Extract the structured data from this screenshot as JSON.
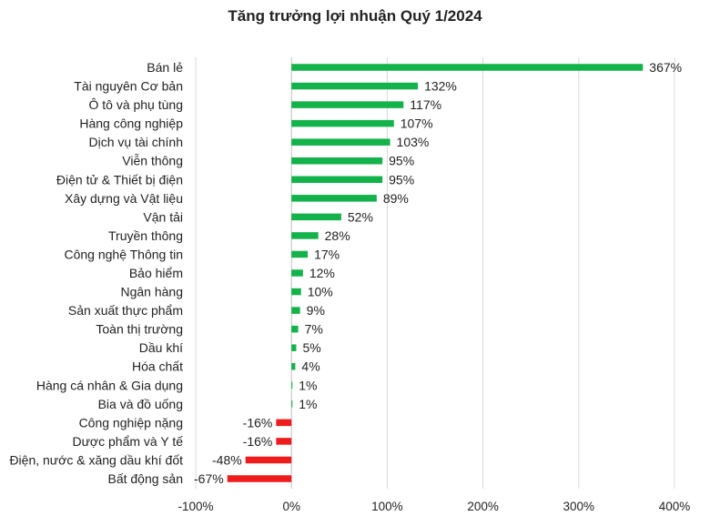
{
  "chart_data": {
    "type": "bar",
    "orientation": "horizontal",
    "title": "Tăng trưởng lợi nhuận Quý 1/2024",
    "xlabel": "",
    "ylabel": "",
    "xlim": [
      -100,
      400
    ],
    "x_ticks": [
      "-100%",
      "0%",
      "100%",
      "200%",
      "300%",
      "400%"
    ],
    "x_tick_values": [
      -100,
      0,
      100,
      200,
      300,
      400
    ],
    "grid": true,
    "legend": "none",
    "colors": {
      "positive": "#13b24b",
      "negative": "#ee1c1c",
      "grid": "#d9d9d9",
      "axis": "#bfbfbf"
    },
    "categories": [
      "Bán lẻ",
      "Tài nguyên Cơ bản",
      "Ô tô và phụ tùng",
      "Hàng công nghiệp",
      "Dịch vụ tài chính",
      "Viễn thông",
      "Điện tử & Thiết bị điện",
      "Xây dựng và Vật liệu",
      "Vận tải",
      "Truyền thông",
      "Công nghệ Thông tin",
      "Bảo hiểm",
      "Ngân hàng",
      "Sản xuất thực phẩm",
      "Toàn thị trường",
      "Dầu khí",
      "Hóa chất",
      "Hàng cá nhân & Gia dụng",
      "Bia và đồ uống",
      "Công nghiệp nặng",
      "Dược phẩm và Y tế",
      "Điện, nước & xăng dầu khí đốt",
      "Bất động sản"
    ],
    "values": [
      367,
      132,
      117,
      107,
      103,
      95,
      95,
      89,
      52,
      28,
      17,
      12,
      10,
      9,
      7,
      5,
      4,
      1,
      1,
      -16,
      -16,
      -48,
      -67
    ],
    "value_labels": [
      "367%",
      "132%",
      "117%",
      "107%",
      "103%",
      "95%",
      "95%",
      "89%",
      "52%",
      "28%",
      "17%",
      "12%",
      "10%",
      "9%",
      "7%",
      "5%",
      "4%",
      "1%",
      "1%",
      "-16%",
      "-16%",
      "-48%",
      "-67%"
    ]
  }
}
